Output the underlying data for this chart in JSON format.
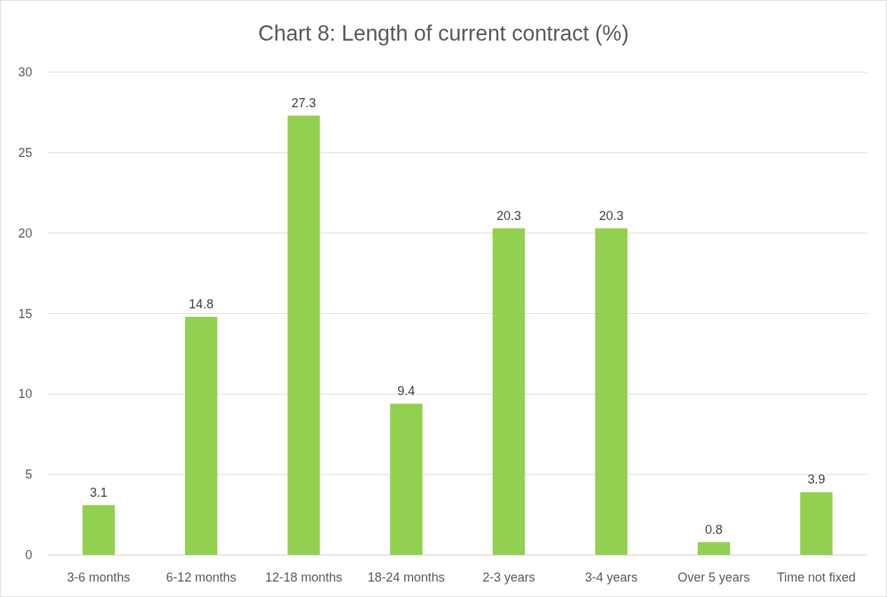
{
  "chart_data": {
    "type": "bar",
    "title": "Chart 8: Length of current contract (%)",
    "categories": [
      "3-6 months",
      "6-12 months",
      "12-18 months",
      "18-24 months",
      "2-3 years",
      "3-4 years",
      "Over 5 years",
      "Time not fixed"
    ],
    "values": [
      3.1,
      14.8,
      27.3,
      9.4,
      20.3,
      20.3,
      0.8,
      3.9
    ],
    "color": "#92d050",
    "ylim": [
      0,
      30
    ],
    "yticks": [
      0,
      5,
      10,
      15,
      20,
      25,
      30
    ],
    "grid": "y",
    "data_labels": true
  }
}
